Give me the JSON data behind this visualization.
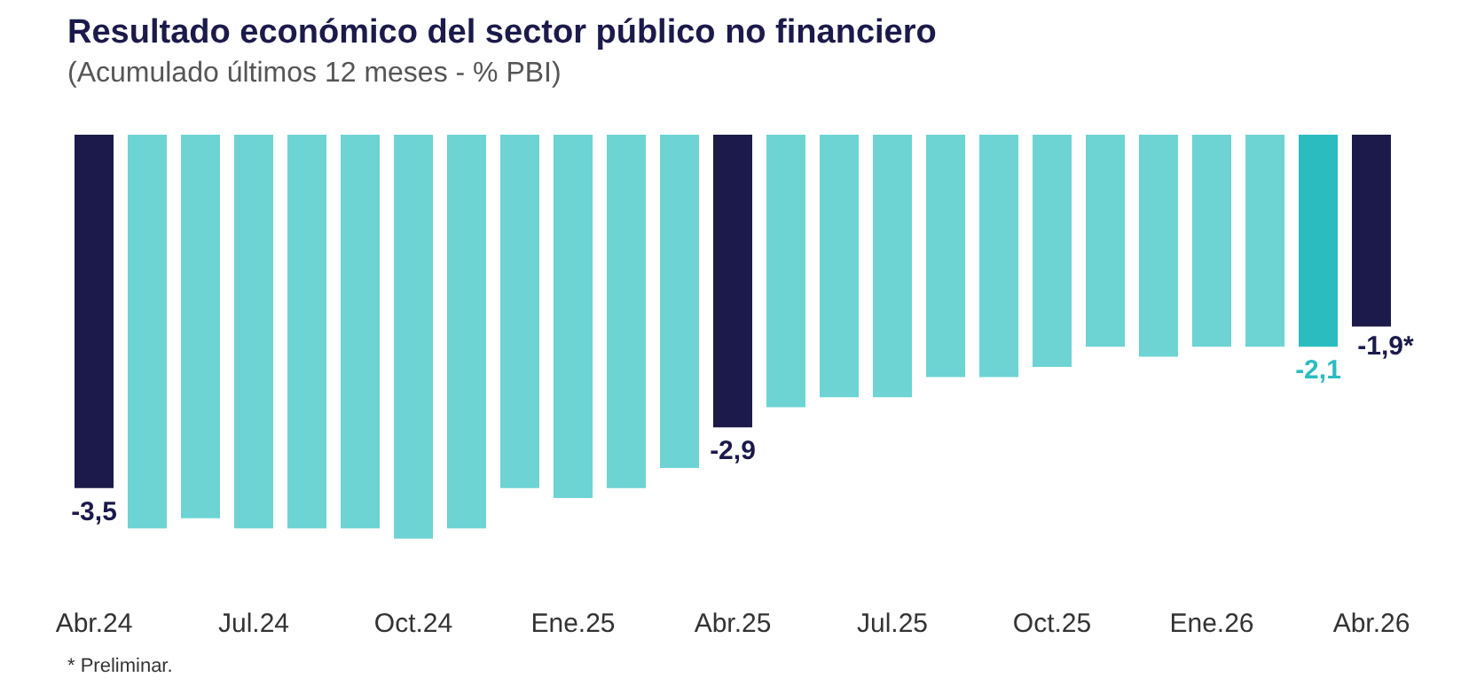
{
  "chart_data": {
    "type": "bar",
    "title": "Resultado económico del sector público no financiero",
    "subtitle": "(Acumulado últimos 12 meses - % PBI)",
    "categories": [
      "Abr.24",
      null,
      null,
      "Jul.24",
      null,
      null,
      "Oct.24",
      null,
      null,
      "Ene.25",
      null,
      null,
      "Abr.25",
      null,
      null,
      "Jul.25",
      null,
      null,
      "Oct.25",
      null,
      null,
      "Ene.26",
      null,
      null,
      "Abr.26"
    ],
    "values": [
      -3.5,
      -3.9,
      -3.8,
      -3.9,
      -3.9,
      -3.9,
      -4.0,
      -3.9,
      -3.5,
      -3.6,
      -3.5,
      -3.3,
      -2.9,
      -2.7,
      -2.6,
      -2.6,
      -2.4,
      -2.4,
      -2.3,
      -2.1,
      -2.2,
      -2.1,
      -2.1,
      -2.1,
      -1.9
    ],
    "colors": [
      "#1b1a4a",
      "#6dd3d3",
      "#6dd3d3",
      "#6dd3d3",
      "#6dd3d3",
      "#6dd3d3",
      "#6dd3d3",
      "#6dd3d3",
      "#6dd3d3",
      "#6dd3d3",
      "#6dd3d3",
      "#6dd3d3",
      "#1b1a4a",
      "#6dd3d3",
      "#6dd3d3",
      "#6dd3d3",
      "#6dd3d3",
      "#6dd3d3",
      "#6dd3d3",
      "#6dd3d3",
      "#6dd3d3",
      "#6dd3d3",
      "#6dd3d3",
      "#2bbcc0",
      "#1b1a4a"
    ],
    "value_labels": [
      "-3,5",
      null,
      null,
      null,
      null,
      null,
      null,
      null,
      null,
      null,
      null,
      null,
      "-2,9",
      null,
      null,
      null,
      null,
      null,
      null,
      null,
      null,
      null,
      null,
      "-2,1",
      "-1,9*"
    ],
    "annotations": [
      "* Preliminar."
    ],
    "grid": false,
    "legend": false
  }
}
